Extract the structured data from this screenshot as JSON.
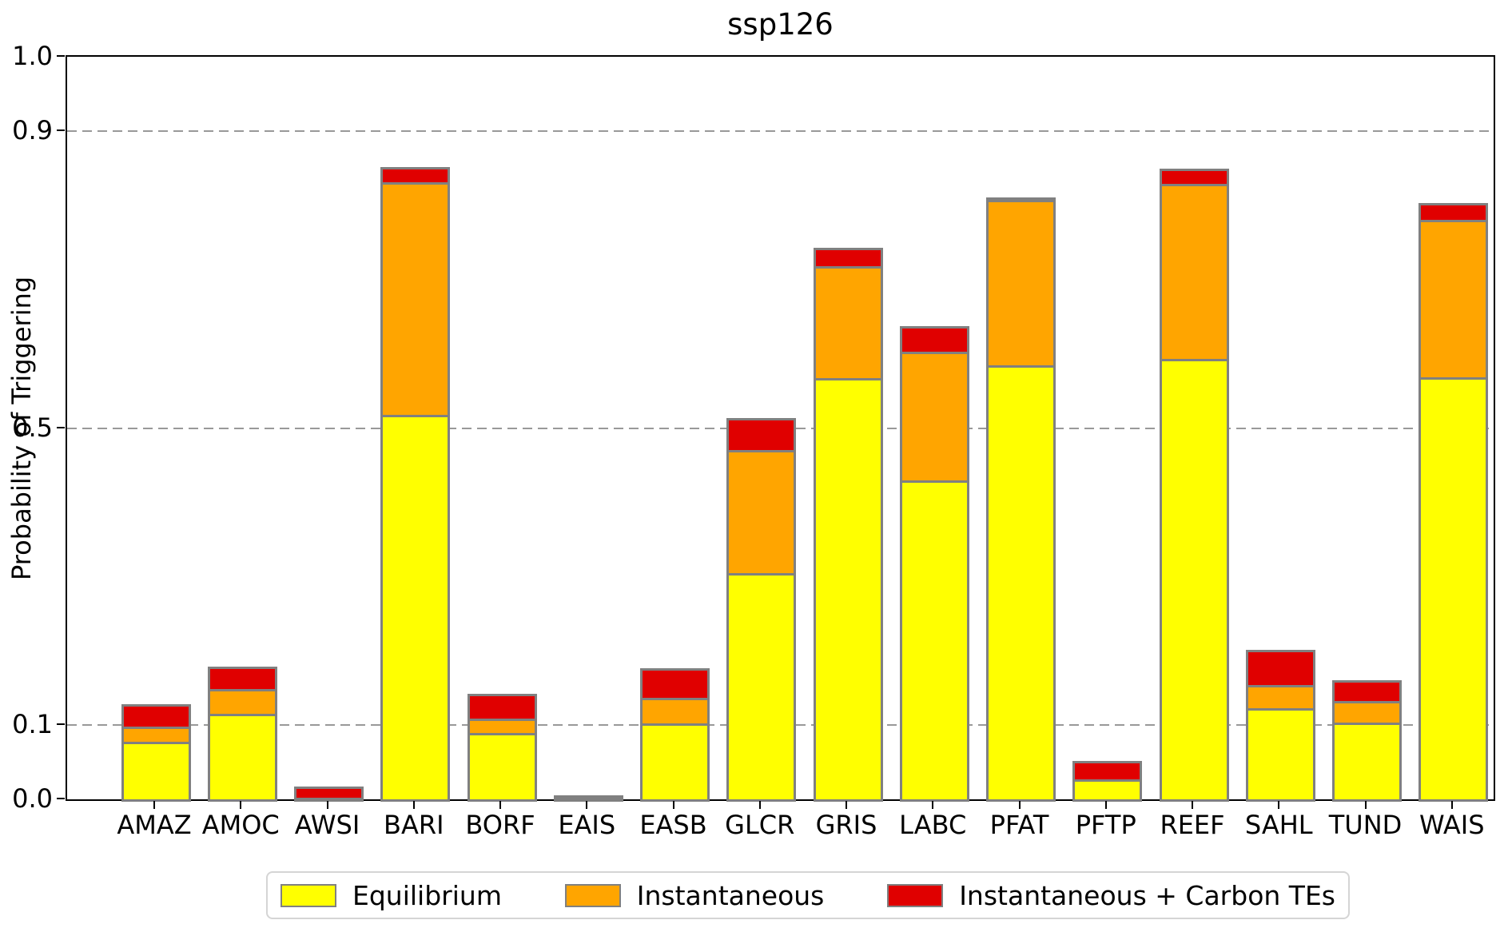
{
  "chart_data": {
    "type": "bar",
    "stacked": true,
    "title": "ssp126",
    "xlabel": "",
    "ylabel": "Probability of Triggering",
    "ylim": [
      0.0,
      1.0
    ],
    "yticks": [
      0.0,
      0.1,
      0.5,
      0.9,
      1.0
    ],
    "ytick_labels": [
      "0.0",
      "0.1",
      "0.5",
      "0.9",
      "1.0"
    ],
    "gridlines": [
      0.1,
      0.5,
      0.9
    ],
    "grid_style": "horizontal dashed gray",
    "legend_position": "bottom",
    "bar_edge_color": "#808080",
    "values_are": "cumulative stack tops (probability of triggering per scenario)",
    "categories": [
      "AMAZ",
      "AMOC",
      "AWSI",
      "BARI",
      "BORF",
      "EAIS",
      "EASB",
      "GLCR",
      "GRIS",
      "LABC",
      "PFAT",
      "PFTP",
      "REEF",
      "SAHL",
      "TUND",
      "WAIS"
    ],
    "series": [
      {
        "name": "Equilibrium",
        "color": "#ffff00",
        "cumulative_values": [
          0.078,
          0.115,
          0.002,
          0.518,
          0.089,
          0.002,
          0.102,
          0.305,
          0.567,
          0.429,
          0.584,
          0.027,
          0.593,
          0.123,
          0.103,
          0.568
        ]
      },
      {
        "name": "Instantaneous",
        "color": "#ffa500",
        "cumulative_values": [
          0.098,
          0.149,
          0.002,
          0.831,
          0.109,
          0.002,
          0.137,
          0.47,
          0.718,
          0.603,
          0.807,
          0.027,
          0.829,
          0.154,
          0.132,
          0.78
        ]
      },
      {
        "name": "Instantaneous + Carbon TEs",
        "color": "#e00000",
        "cumulative_values": [
          0.125,
          0.175,
          0.014,
          0.848,
          0.139,
          0.002,
          0.173,
          0.51,
          0.74,
          0.634,
          0.807,
          0.048,
          0.846,
          0.198,
          0.157,
          0.8
        ]
      }
    ]
  }
}
